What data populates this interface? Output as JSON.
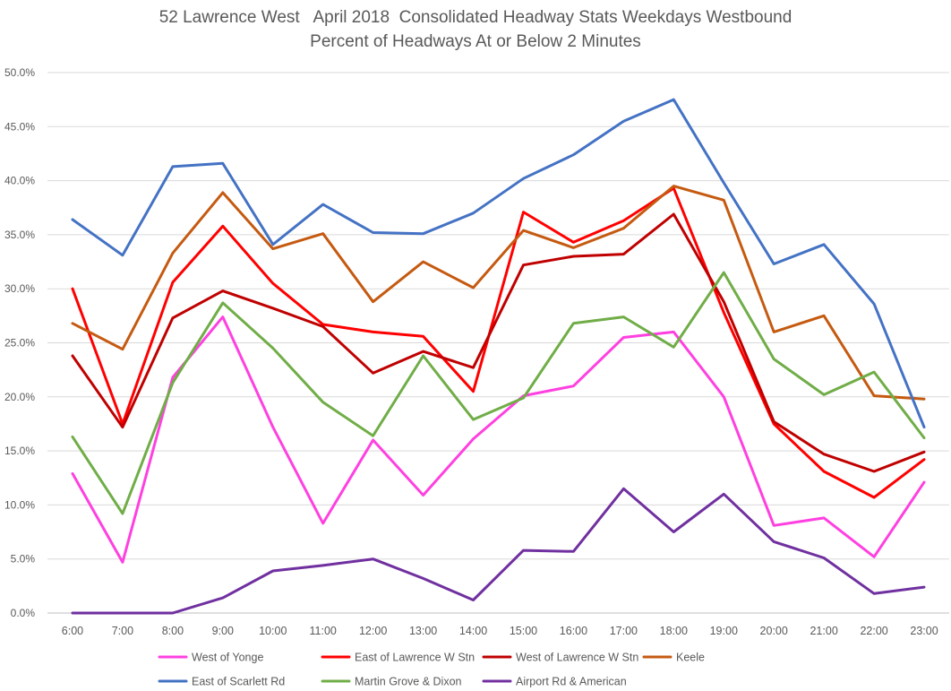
{
  "chart_data": {
    "type": "line",
    "title": "52 Lawrence West   April 2018  Consolidated Headway Stats Weekdays Westbound",
    "subtitle": "Percent of Headways At or Below 2 Minutes",
    "xlabel": "",
    "ylabel": "",
    "ylim": [
      0,
      50
    ],
    "y_ticks": [
      "0.0%",
      "5.0%",
      "10.0%",
      "15.0%",
      "20.0%",
      "25.0%",
      "30.0%",
      "35.0%",
      "40.0%",
      "45.0%",
      "50.0%"
    ],
    "grid": "horizontal",
    "legend_position": "bottom",
    "categories": [
      "6:00",
      "7:00",
      "8:00",
      "9:00",
      "10:00",
      "11:00",
      "12:00",
      "13:00",
      "14:00",
      "15:00",
      "16:00",
      "17:00",
      "18:00",
      "19:00",
      "20:00",
      "21:00",
      "22:00",
      "23:00"
    ],
    "series": [
      {
        "name": "West of Yonge",
        "color": "#ff40e0",
        "values": [
          12.9,
          4.7,
          21.8,
          27.4,
          17.2,
          8.3,
          16.0,
          10.9,
          16.1,
          20.1,
          21.0,
          25.5,
          26.0,
          20.0,
          8.1,
          8.8,
          5.2,
          12.1
        ]
      },
      {
        "name": "East of Lawrence W Stn",
        "color": "#ff0000",
        "values": [
          30.0,
          17.5,
          30.6,
          35.8,
          30.5,
          26.7,
          26.0,
          25.6,
          20.5,
          37.1,
          34.3,
          36.3,
          39.3,
          27.8,
          17.5,
          13.1,
          10.7,
          14.2
        ]
      },
      {
        "name": "West of Lawrence W Stn",
        "color": "#c00000",
        "values": [
          23.8,
          17.2,
          27.3,
          29.8,
          28.2,
          26.5,
          22.2,
          24.2,
          22.7,
          32.2,
          33.0,
          33.2,
          36.9,
          28.8,
          17.7,
          14.7,
          13.1,
          14.9
        ]
      },
      {
        "name": "Keele",
        "color": "#c55a11",
        "values": [
          26.8,
          24.4,
          33.3,
          38.9,
          33.7,
          35.1,
          28.8,
          32.5,
          30.1,
          35.4,
          33.8,
          35.6,
          39.5,
          38.2,
          26.0,
          27.5,
          20.1,
          19.8
        ]
      },
      {
        "name": "East of Scarlett Rd",
        "color": "#4472c4",
        "values": [
          36.4,
          33.1,
          41.3,
          41.6,
          34.1,
          37.8,
          35.2,
          35.1,
          37.0,
          40.2,
          42.4,
          45.5,
          47.5,
          39.8,
          32.3,
          34.1,
          28.6,
          17.2
        ]
      },
      {
        "name": "Martin Grove & Dixon",
        "color": "#70ad47",
        "values": [
          16.3,
          9.2,
          21.3,
          28.7,
          24.5,
          19.5,
          16.4,
          23.8,
          17.9,
          19.9,
          26.8,
          27.4,
          24.6,
          31.5,
          23.5,
          20.2,
          22.3,
          16.2
        ]
      },
      {
        "name": "Airport Rd & American",
        "color": "#7030a0",
        "values": [
          0.0,
          0.0,
          0.0,
          1.4,
          3.9,
          4.4,
          5.0,
          3.2,
          1.2,
          5.8,
          5.7,
          11.5,
          7.5,
          11.0,
          6.6,
          5.1,
          1.8,
          2.4
        ]
      }
    ]
  }
}
